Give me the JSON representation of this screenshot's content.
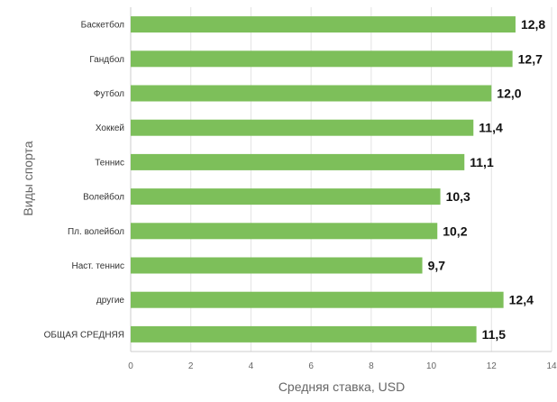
{
  "chart_data": {
    "type": "bar",
    "orientation": "horizontal",
    "categories": [
      "Баскетбол",
      "Гандбол",
      "Футбол",
      "Хоккей",
      "Теннис",
      "Волейбол",
      "Пл. волейбол",
      "Наст. теннис",
      "другие",
      "ОБЩАЯ СРЕДНЯЯ"
    ],
    "values": [
      12.8,
      12.7,
      12.0,
      11.4,
      11.1,
      10.3,
      10.2,
      9.7,
      12.4,
      11.5
    ],
    "value_labels": [
      "12,8",
      "12,7",
      "12,0",
      "11,4",
      "11,1",
      "10,3",
      "10,2",
      "9,7",
      "12,4",
      "11,5"
    ],
    "xlabel": "Средняя ставка, USD",
    "ylabel": "Виды спорта",
    "xlim": [
      0,
      14
    ],
    "xticks": [
      "0",
      "2",
      "4",
      "6",
      "8",
      "10",
      "12",
      "14"
    ],
    "bar_color": "#7dbf5a",
    "grid": true
  }
}
